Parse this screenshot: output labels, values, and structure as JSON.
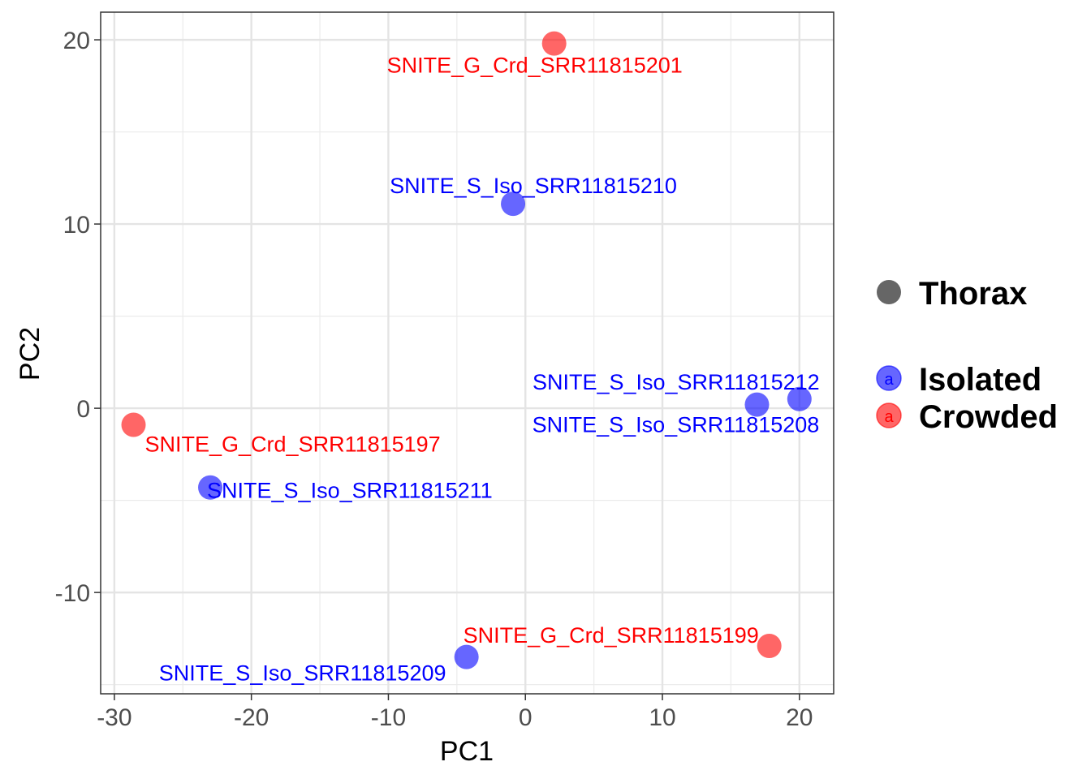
{
  "chart_data": {
    "type": "scatter",
    "xlabel": "PC1",
    "ylabel": "PC2",
    "xlim": [
      -31,
      22.5
    ],
    "ylim": [
      -15.5,
      21.5
    ],
    "x_ticks": [
      -30,
      -20,
      -10,
      0,
      10,
      20
    ],
    "x_tick_labels": [
      "-30",
      "-20",
      "-10",
      "0",
      "10",
      "20"
    ],
    "y_ticks": [
      -10,
      0,
      10,
      20
    ],
    "y_tick_labels": [
      "-10",
      "0",
      "10",
      "20"
    ],
    "grid": true,
    "colors": {
      "Isolated": "#0000ff",
      "Crowded": "#ff0000",
      "shape_key": "#666666"
    },
    "legend": {
      "position": "right",
      "shape_title": "Thorax",
      "key_glyph": "a",
      "entries": [
        "Isolated",
        "Crowded"
      ]
    },
    "points": [
      {
        "label": "SNITE_G_Crd_SRR11815201",
        "group": "Crowded",
        "x": 2.1,
        "y": 19.8
      },
      {
        "label": "SNITE_S_Iso_SRR11815210",
        "group": "Isolated",
        "x": -0.9,
        "y": 11.1
      },
      {
        "label": "SNITE_S_Iso_SRR11815212",
        "group": "Isolated",
        "x": 20.0,
        "y": 0.5
      },
      {
        "label": "SNITE_S_Iso_SRR11815208",
        "group": "Isolated",
        "x": 16.9,
        "y": 0.2
      },
      {
        "label": "SNITE_G_Crd_SRR11815197",
        "group": "Crowded",
        "x": -28.6,
        "y": -0.9
      },
      {
        "label": "SNITE_S_Iso_SRR11815211",
        "group": "Isolated",
        "x": -23.0,
        "y": -4.3
      },
      {
        "label": "SNITE_G_Crd_SRR11815199",
        "group": "Crowded",
        "x": 17.8,
        "y": -12.9
      },
      {
        "label": "SNITE_S_Iso_SRR11815209",
        "group": "Isolated",
        "x": -4.3,
        "y": -13.5
      }
    ]
  }
}
